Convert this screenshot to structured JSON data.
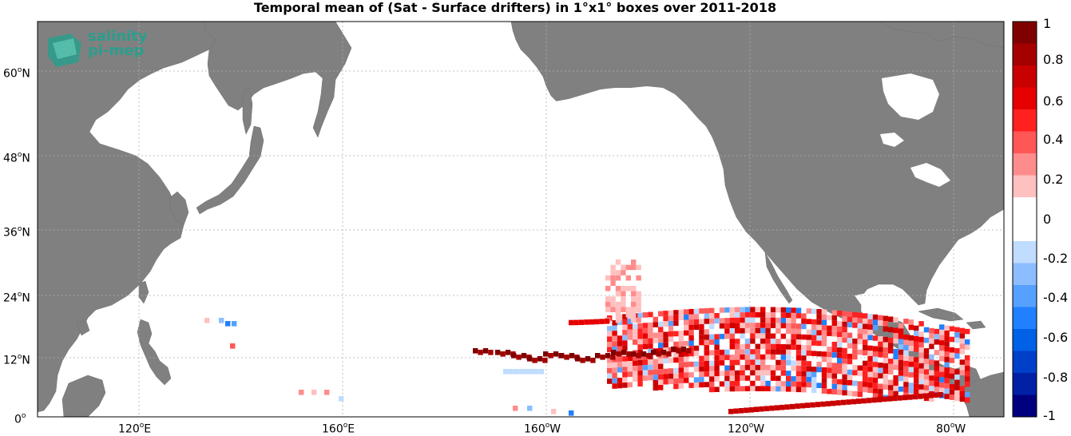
{
  "title": "Temporal mean of (Sat - Surface drifters) in 1°x1° boxes over 2011-2018",
  "logo": {
    "line1": "salinity",
    "line2": "pi-mep"
  },
  "lat_ticks": [
    {
      "deg": "60",
      "hemi": "N"
    },
    {
      "deg": "48",
      "hemi": "N"
    },
    {
      "deg": "36",
      "hemi": "N"
    },
    {
      "deg": "24",
      "hemi": "N"
    },
    {
      "deg": "12",
      "hemi": "N"
    },
    {
      "deg": "0",
      "hemi": ""
    }
  ],
  "lon_ticks": [
    {
      "deg": "120",
      "hemi": "E"
    },
    {
      "deg": "160",
      "hemi": "E"
    },
    {
      "deg": "160",
      "hemi": "W"
    },
    {
      "deg": "120",
      "hemi": "W"
    },
    {
      "deg": "80",
      "hemi": "W"
    }
  ],
  "colorbar": {
    "labels": [
      "1",
      "0.8",
      "0.6",
      "0.4",
      "0.2",
      "0",
      "-0.2",
      "-0.4",
      "-0.6",
      "-0.8",
      "-1"
    ],
    "colors": [
      "#7f0000",
      "#a50000",
      "#c80000",
      "#e60000",
      "#ff2020",
      "#ff5656",
      "#ff8c8c",
      "#ffc0c0",
      "#ffffff",
      "#ffffff",
      "#c0dcff",
      "#8cbeff",
      "#56a0ff",
      "#2080ff",
      "#0060e6",
      "#0040c8",
      "#0020a5",
      "#00007f"
    ]
  },
  "colors": {
    "land": "#808080",
    "ocean": "#ffffff",
    "logo": "#2a9e8c"
  }
}
